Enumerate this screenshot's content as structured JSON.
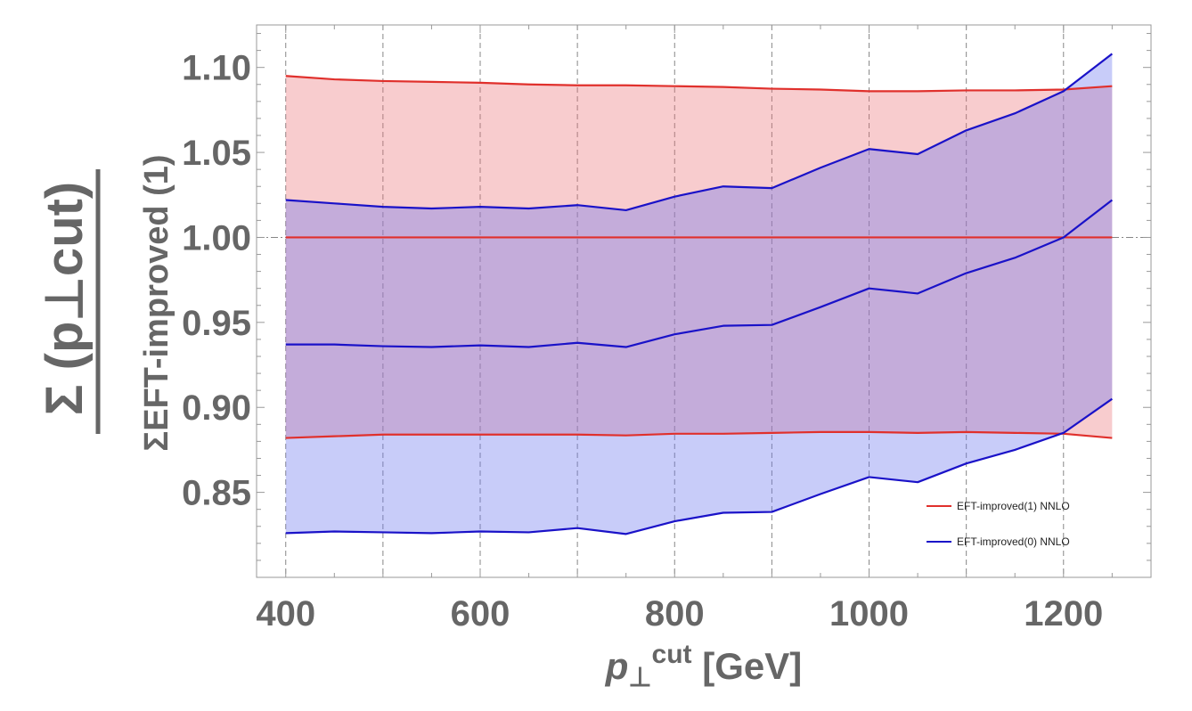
{
  "chart_data": {
    "type": "area",
    "x_axis": {
      "label_symbol": "p",
      "label_sub": "⊥",
      "label_sup": "cut",
      "label_unit": "[GeV]",
      "range": [
        370,
        1290
      ],
      "ticks": [
        400,
        600,
        800,
        1000,
        1200
      ],
      "tick_labels": [
        "400",
        "600",
        "800",
        "1000",
        "1200"
      ],
      "gridlines": [
        400,
        500,
        600,
        700,
        800,
        900,
        1000,
        1100,
        1200
      ]
    },
    "y_axis": {
      "label_numerator": "Σ (p⊥cut)",
      "label_denominator": "ΣEFT-improved (1)",
      "range": [
        0.8,
        1.125
      ],
      "ticks": [
        0.85,
        0.9,
        0.95,
        1.0,
        1.05,
        1.1
      ],
      "tick_labels": [
        "0.85",
        "0.90",
        "0.95",
        "1.00",
        "1.05",
        "1.10"
      ],
      "reference_line": 1.0
    },
    "grid": "vertical dashed",
    "legend_position": "bottom-right",
    "x": [
      400,
      450,
      500,
      550,
      600,
      650,
      700,
      750,
      800,
      850,
      900,
      950,
      1000,
      1050,
      1100,
      1150,
      1200,
      1250
    ],
    "series": [
      {
        "name": "EFT-improved(1) NNLO",
        "color": "#e0302c",
        "fill": "rgba(235, 110, 115, 0.35)",
        "central": [
          1.0,
          1.0,
          1.0,
          1.0,
          1.0,
          1.0,
          1.0,
          1.0,
          1.0,
          1.0,
          1.0,
          1.0,
          1.0,
          1.0,
          1.0,
          1.0,
          1.0,
          1.0
        ],
        "upper": [
          1.095,
          1.093,
          1.092,
          1.0915,
          1.091,
          1.09,
          1.0895,
          1.0895,
          1.089,
          1.0885,
          1.0875,
          1.087,
          1.086,
          1.086,
          1.0865,
          1.0865,
          1.087,
          1.089
        ],
        "lower": [
          0.882,
          0.883,
          0.884,
          0.884,
          0.884,
          0.884,
          0.884,
          0.8835,
          0.8845,
          0.8845,
          0.885,
          0.8855,
          0.8855,
          0.885,
          0.8855,
          0.885,
          0.8845,
          0.882
        ]
      },
      {
        "name": "EFT-improved(0) NNLO",
        "color": "#1a12c8",
        "fill": "rgba(110, 120, 240, 0.38)",
        "central": [
          0.937,
          0.937,
          0.936,
          0.9355,
          0.9365,
          0.9355,
          0.938,
          0.9355,
          0.943,
          0.948,
          0.9485,
          0.959,
          0.97,
          0.967,
          0.979,
          0.988,
          1.0,
          1.022
        ],
        "upper": [
          1.022,
          1.02,
          1.018,
          1.017,
          1.018,
          1.017,
          1.019,
          1.016,
          1.024,
          1.03,
          1.029,
          1.041,
          1.052,
          1.049,
          1.063,
          1.073,
          1.086,
          1.108
        ],
        "lower": [
          0.826,
          0.827,
          0.8265,
          0.826,
          0.827,
          0.8265,
          0.829,
          0.8255,
          0.833,
          0.838,
          0.8385,
          0.849,
          0.859,
          0.856,
          0.867,
          0.875,
          0.885,
          0.905
        ]
      }
    ]
  }
}
